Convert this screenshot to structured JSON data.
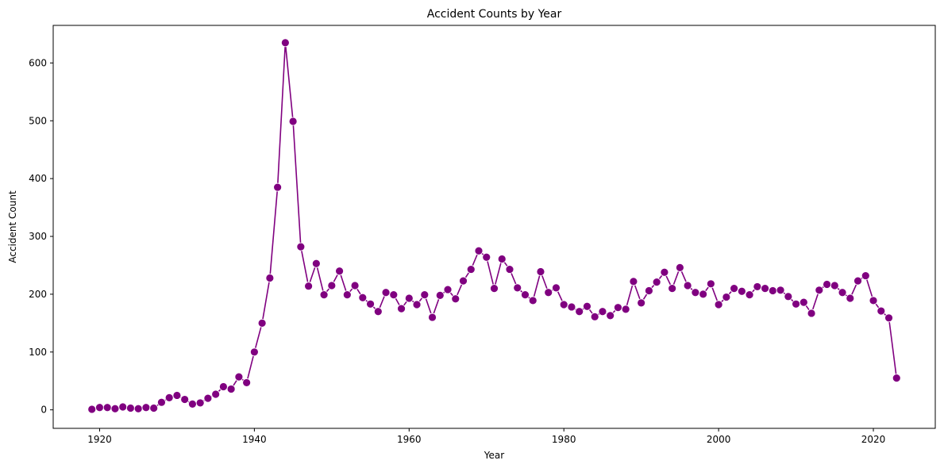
{
  "chart_data": {
    "type": "line",
    "title": "Accident Counts by Year",
    "xlabel": "Year",
    "ylabel": "Accident Count",
    "xlim": [
      1914,
      2028
    ],
    "ylim": [
      -32,
      665
    ],
    "xticks": [
      1920,
      1940,
      1960,
      1980,
      2000,
      2020
    ],
    "yticks": [
      0,
      100,
      200,
      300,
      400,
      500,
      600
    ],
    "grid": false,
    "legend": "none",
    "colors": {
      "line": "#800080",
      "marker": "#800080",
      "marker_edge": "#ffffff"
    },
    "series": [
      {
        "x": [
          1919,
          1920,
          1921,
          1922,
          1923,
          1924,
          1925,
          1926,
          1927,
          1928,
          1929,
          1930,
          1931,
          1932,
          1933,
          1934,
          1935,
          1936,
          1937,
          1938,
          1939,
          1940,
          1941,
          1942,
          1943,
          1944,
          1945,
          1946,
          1947,
          1948,
          1949,
          1950,
          1951,
          1952,
          1953,
          1954,
          1955,
          1956,
          1957,
          1958,
          1959,
          1960,
          1961,
          1962,
          1963,
          1964,
          1965,
          1966,
          1967,
          1968,
          1969,
          1970,
          1971,
          1972,
          1973,
          1974,
          1975,
          1976,
          1977,
          1978,
          1979,
          1980,
          1981,
          1982,
          1983,
          1984,
          1985,
          1986,
          1987,
          1988,
          1989,
          1990,
          1991,
          1992,
          1993,
          1994,
          1995,
          1996,
          1997,
          1998,
          1999,
          2000,
          2001,
          2002,
          2003,
          2004,
          2005,
          2006,
          2007,
          2008,
          2009,
          2010,
          2011,
          2012,
          2013,
          2014,
          2015,
          2016,
          2017,
          2018,
          2019,
          2020,
          2021,
          2022,
          2023
        ],
        "y": [
          1,
          4,
          4,
          2,
          5,
          3,
          2,
          4,
          3,
          13,
          21,
          25,
          18,
          10,
          12,
          20,
          27,
          40,
          36,
          57,
          47,
          100,
          150,
          228,
          385,
          635,
          499,
          282,
          214,
          253,
          199,
          215,
          240,
          199,
          215,
          194,
          183,
          170,
          203,
          199,
          175,
          193,
          182,
          199,
          160,
          198,
          208,
          192,
          223,
          243,
          275,
          264,
          210,
          261,
          243,
          211,
          199,
          189,
          239,
          203,
          211,
          182,
          178,
          170,
          179,
          161,
          170,
          163,
          177,
          174,
          222,
          185,
          206,
          221,
          238,
          210,
          246,
          215,
          203,
          200,
          218,
          182,
          195,
          210,
          205,
          199,
          213,
          210,
          206,
          207,
          196,
          183,
          186,
          167,
          207,
          217,
          215,
          203,
          193,
          223,
          232,
          189,
          171,
          159,
          55
        ]
      }
    ]
  }
}
